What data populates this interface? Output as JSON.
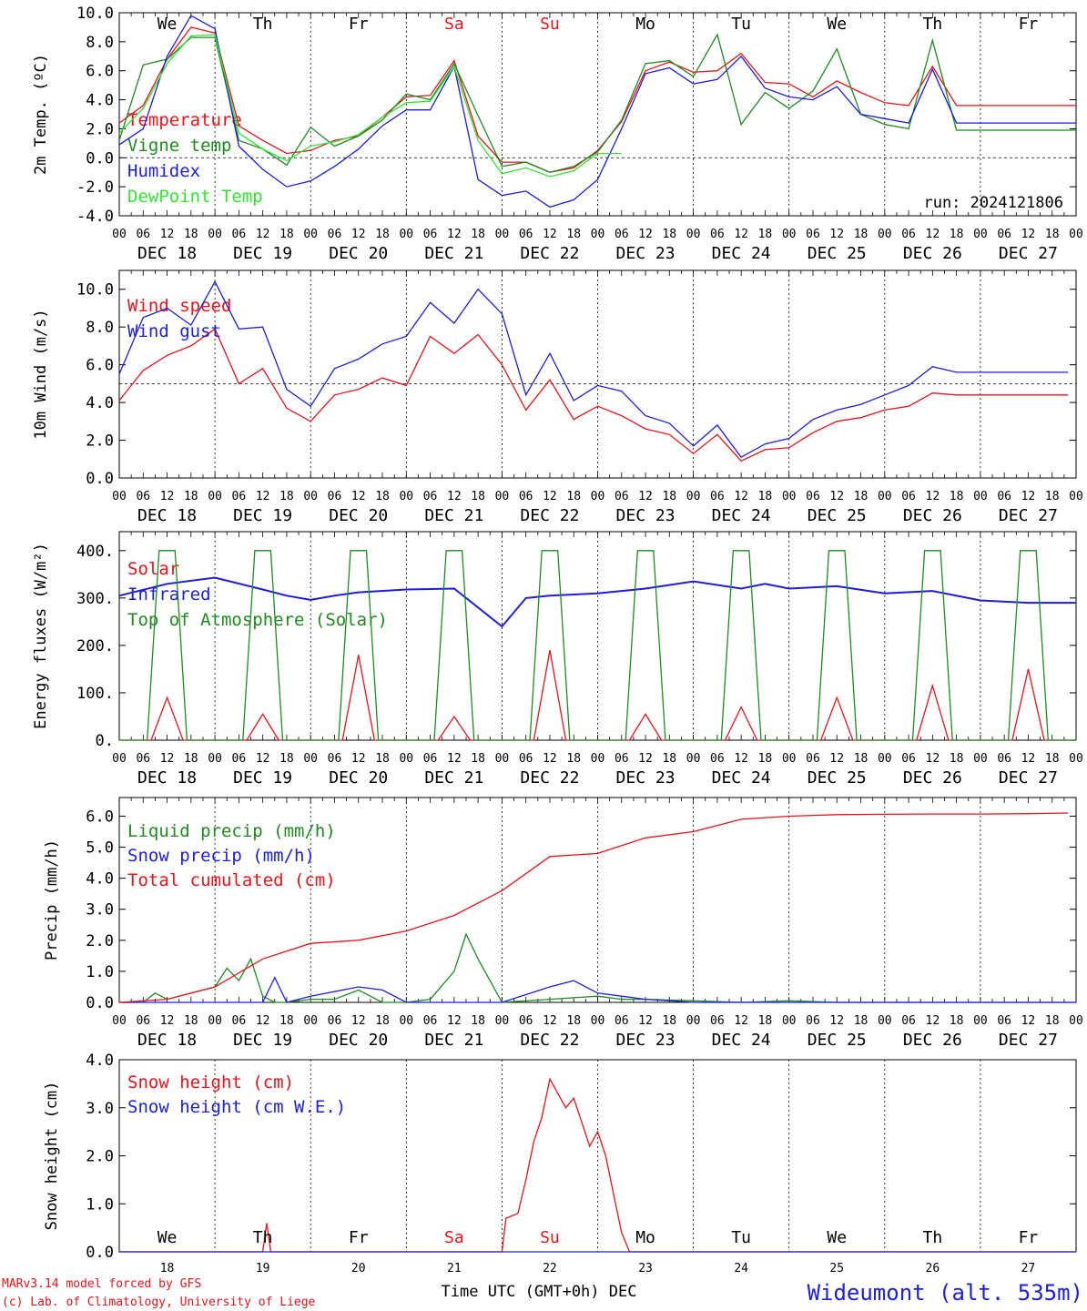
{
  "footer": {
    "model": "MARv3.14 model forced by GFS",
    "copyright": "(c) Lab. of Climatology, University of Liege",
    "station": "Wideumont (alt. 535m)",
    "xlabel": "Time UTC (GMT+0h) DEC"
  },
  "days": {
    "weekday": [
      "We",
      "Th",
      "Fr",
      "Sa",
      "Su",
      "Mo",
      "Tu",
      "We",
      "Th",
      "Fr"
    ],
    "weekday_bottom": [
      "We",
      "Th",
      "Fr",
      "Sa",
      "Su",
      "Mo",
      "Tu",
      "We",
      "Th",
      "Fr"
    ],
    "weekend_color": "#e8141a",
    "weekend_index": [
      3,
      4
    ],
    "dates": [
      "DEC 18",
      "DEC 19",
      "DEC 20",
      "DEC 21",
      "DEC 22",
      "DEC 23",
      "DEC 24",
      "DEC 25",
      "DEC 26",
      "DEC 27"
    ],
    "day_numbers": [
      "18",
      "19",
      "20",
      "21",
      "22",
      "23",
      "24",
      "25",
      "26",
      "27"
    ],
    "hour_ticks": [
      "00",
      "06",
      "12",
      "18"
    ],
    "final_tick": "00"
  },
  "colors": {
    "red": "#e8141a",
    "green": "#1f8a1f",
    "blue": "#1d1de0",
    "lightgreen": "#33e633",
    "black": "#000000"
  },
  "chart_data": [
    {
      "id": "temp",
      "type": "line",
      "ylabel": "2m Temp. (ºC)",
      "ylim": [
        -4,
        10
      ],
      "yticks": [
        "-4.0",
        "-2.0",
        "0.0",
        "2.0",
        "4.0",
        "6.0",
        "8.0",
        "10.0"
      ],
      "refline": 0,
      "annotation": "run: 2024121806",
      "x_unit": "hours since DEC 18 00 UTC",
      "series": [
        {
          "name": "Temperature",
          "color": "red",
          "x": [
            0,
            6,
            12,
            18,
            24,
            30,
            36,
            42,
            48,
            54,
            60,
            66,
            72,
            78,
            84,
            90,
            96,
            102,
            108,
            114,
            120,
            126,
            132,
            138,
            144,
            150,
            156,
            162,
            168,
            174,
            180,
            186,
            192,
            198,
            204,
            210,
            216,
            222,
            228,
            234,
            240
          ],
          "values": [
            2.4,
            3.6,
            6.8,
            9.0,
            8.6,
            2.2,
            1.2,
            0.3,
            0.5,
            1.2,
            1.5,
            2.8,
            4.2,
            4.3,
            6.7,
            1.5,
            -0.3,
            -0.3,
            -1.0,
            -0.7,
            0.5,
            2.5,
            6.0,
            6.6,
            5.9,
            6.0,
            7.2,
            5.2,
            5.1,
            4.2,
            5.3,
            4.5,
            3.8,
            3.6,
            6.3,
            3.6,
            3.6,
            3.6,
            3.6,
            3.6,
            3.6
          ]
        },
        {
          "name": "Vigne temp",
          "color": "green",
          "x": [
            0,
            6,
            12,
            18,
            24,
            30,
            36,
            42,
            48,
            54,
            60,
            66,
            72,
            78,
            84,
            90,
            96,
            102,
            108,
            114,
            120,
            126,
            132,
            138,
            144,
            150,
            156,
            162,
            168,
            174,
            180,
            186,
            192,
            198,
            204,
            210,
            216,
            222,
            228,
            234,
            240
          ],
          "values": [
            1.2,
            6.4,
            6.8,
            8.3,
            8.3,
            1.2,
            0.6,
            -0.5,
            2.1,
            0.8,
            1.5,
            2.6,
            4.4,
            4.0,
            6.5,
            2.9,
            -0.6,
            -0.3,
            -1.0,
            -0.6,
            0.4,
            2.6,
            6.5,
            6.7,
            5.6,
            8.5,
            2.3,
            4.5,
            3.4,
            4.6,
            7.5,
            3.0,
            2.3,
            2.0,
            8.1,
            1.9,
            1.9,
            1.9,
            1.9,
            1.9,
            1.9
          ]
        },
        {
          "name": "Humidex",
          "color": "blue",
          "x": [
            0,
            6,
            12,
            18,
            24,
            30,
            36,
            42,
            48,
            54,
            60,
            66,
            72,
            78,
            84,
            90,
            96,
            102,
            108,
            114,
            120,
            126,
            132,
            138,
            144,
            150,
            156,
            162,
            168,
            174,
            180,
            186,
            192,
            198,
            204,
            210,
            216,
            222,
            228,
            234,
            240
          ],
          "values": [
            0.9,
            2.0,
            7.0,
            9.8,
            8.9,
            0.8,
            -0.8,
            -2.0,
            -1.6,
            -0.6,
            0.6,
            2.2,
            3.3,
            3.3,
            6.3,
            -1.5,
            -2.6,
            -2.3,
            -3.4,
            -2.9,
            -1.5,
            2.0,
            5.8,
            6.2,
            5.1,
            5.4,
            7.0,
            4.8,
            4.2,
            4.0,
            4.9,
            3.0,
            2.7,
            2.4,
            6.1,
            2.4,
            2.4,
            2.4,
            2.4,
            2.4,
            2.4
          ]
        },
        {
          "name": "DewPoint Temp",
          "color": "lightgreen",
          "x": [
            0,
            6,
            12,
            18,
            24,
            30,
            36,
            42,
            48,
            54,
            60,
            66,
            72,
            78,
            84,
            90,
            96,
            102,
            108,
            114,
            120,
            126
          ],
          "values": [
            1.7,
            3.4,
            6.5,
            8.4,
            8.5,
            1.7,
            0.6,
            -0.2,
            0.8,
            1.1,
            1.6,
            2.8,
            3.8,
            3.9,
            6.3,
            1.2,
            -1.1,
            -0.7,
            -1.3,
            -0.9,
            0.3,
            0.3
          ]
        }
      ]
    },
    {
      "id": "wind",
      "type": "line",
      "ylabel": "10m Wind (m/s)",
      "ylim": [
        0,
        11
      ],
      "yticks": [
        "0.0",
        "2.0",
        "4.0",
        "6.0",
        "8.0",
        "10.0"
      ],
      "refline": 5,
      "x_unit": "hours since DEC 18 00 UTC",
      "series": [
        {
          "name": "Wind speed",
          "color": "red",
          "x": [
            0,
            6,
            12,
            18,
            24,
            30,
            36,
            42,
            48,
            54,
            60,
            66,
            72,
            78,
            84,
            90,
            96,
            102,
            108,
            114,
            120,
            126,
            132,
            138,
            144,
            150,
            156,
            162,
            168,
            174,
            180,
            186,
            192,
            198,
            204,
            210,
            216,
            222,
            228,
            234,
            238
          ],
          "values": [
            4.1,
            5.7,
            6.5,
            7.0,
            7.9,
            5.0,
            5.8,
            3.7,
            3.0,
            4.4,
            4.7,
            5.3,
            4.9,
            7.5,
            6.6,
            7.6,
            6.0,
            3.6,
            5.2,
            3.1,
            3.8,
            3.3,
            2.6,
            2.3,
            1.3,
            2.3,
            0.9,
            1.5,
            1.6,
            2.4,
            3.0,
            3.2,
            3.6,
            3.8,
            4.5,
            4.4,
            4.4,
            4.4,
            4.4,
            4.4,
            4.4
          ]
        },
        {
          "name": "Wind gust",
          "color": "blue",
          "x": [
            0,
            6,
            12,
            18,
            24,
            30,
            36,
            42,
            48,
            54,
            60,
            66,
            72,
            78,
            84,
            90,
            96,
            102,
            108,
            114,
            120,
            126,
            132,
            138,
            144,
            150,
            156,
            162,
            168,
            174,
            180,
            186,
            192,
            198,
            204,
            210,
            216,
            222,
            228,
            234,
            238
          ],
          "values": [
            5.5,
            8.5,
            9.0,
            8.1,
            10.4,
            7.9,
            8.0,
            4.7,
            3.8,
            5.8,
            6.3,
            7.1,
            7.5,
            9.3,
            8.2,
            10.0,
            8.7,
            4.4,
            6.6,
            4.1,
            4.9,
            4.6,
            3.3,
            2.9,
            1.7,
            2.8,
            1.1,
            1.8,
            2.1,
            3.1,
            3.6,
            3.9,
            4.4,
            4.9,
            5.9,
            5.6,
            5.6,
            5.6,
            5.6,
            5.6,
            5.6
          ]
        }
      ]
    },
    {
      "id": "energy",
      "type": "line",
      "ylabel": "Energy fluxes (W/m²)",
      "ylim": [
        0,
        440
      ],
      "yticks": [
        "0.",
        "100.",
        "200.",
        "300.",
        "400."
      ],
      "x_unit": "hours since DEC 18 00 UTC",
      "series": [
        {
          "name": "Solar",
          "color": "red",
          "peaks": [
            90,
            55,
            180,
            50,
            190,
            55,
            70,
            90,
            115,
            150
          ],
          "peak_hour": 12
        },
        {
          "name": "Infrared",
          "color": "blue",
          "x": [
            0,
            12,
            24,
            36,
            42,
            48,
            54,
            60,
            72,
            84,
            96,
            102,
            108,
            120,
            132,
            144,
            156,
            162,
            168,
            180,
            192,
            204,
            216,
            228,
            240
          ],
          "values": [
            305,
            330,
            343,
            318,
            305,
            296,
            305,
            312,
            318,
            320,
            240,
            300,
            305,
            310,
            320,
            335,
            320,
            330,
            320,
            325,
            310,
            315,
            295,
            290,
            290
          ]
        },
        {
          "name": "Top of Atmosphere (Solar)",
          "color": "green",
          "peak": 400,
          "rise_hour": 7,
          "set_hour": 17,
          "plateau_start": 10,
          "plateau_end": 14
        }
      ]
    },
    {
      "id": "precip",
      "type": "line",
      "ylabel": "Precip (mm/h)",
      "ylim": [
        0,
        6.6
      ],
      "yticks": [
        "0.0",
        "1.0",
        "2.0",
        "3.0",
        "4.0",
        "5.0",
        "6.0"
      ],
      "x_unit": "hours since DEC 18 00 UTC",
      "series": [
        {
          "name": "Liquid precip (mm/h)",
          "color": "green",
          "x": [
            0,
            6,
            9,
            12,
            18,
            24,
            27,
            30,
            33,
            36,
            39,
            42,
            48,
            54,
            60,
            66,
            72,
            78,
            84,
            87,
            90,
            96,
            108,
            120,
            126,
            132,
            144,
            156,
            168,
            180,
            192,
            204,
            216,
            228,
            240
          ],
          "values": [
            0,
            0,
            0.3,
            0.1,
            0.3,
            0.5,
            1.1,
            0.7,
            1.4,
            0.2,
            0,
            0,
            0.1,
            0.1,
            0.4,
            0,
            0,
            0.1,
            1.0,
            2.2,
            1.4,
            0,
            0.1,
            0.2,
            0.1,
            0.1,
            0.05,
            0,
            0.05,
            0,
            0,
            0,
            0,
            0,
            0
          ]
        },
        {
          "name": "Snow precip (mm/h)",
          "color": "blue",
          "x": [
            0,
            24,
            36,
            39,
            42,
            48,
            60,
            66,
            72,
            84,
            96,
            108,
            114,
            120,
            126,
            132,
            144,
            156,
            168,
            180,
            192,
            204,
            216,
            228,
            240
          ],
          "values": [
            0,
            0,
            0,
            0.8,
            0,
            0.2,
            0.5,
            0.4,
            0,
            0,
            0,
            0.5,
            0.7,
            0.3,
            0.2,
            0.1,
            0,
            0,
            0,
            0,
            0,
            0,
            0,
            0,
            0
          ]
        },
        {
          "name": "Total cumulated (cm)",
          "color": "red",
          "x": [
            0,
            12,
            24,
            36,
            48,
            60,
            72,
            84,
            96,
            108,
            120,
            132,
            144,
            156,
            168,
            180,
            192,
            204,
            216,
            228,
            238
          ],
          "values": [
            0,
            0.1,
            0.5,
            1.4,
            1.9,
            2.0,
            2.3,
            2.8,
            3.6,
            4.7,
            4.8,
            5.3,
            5.5,
            5.9,
            6.0,
            6.05,
            6.06,
            6.07,
            6.07,
            6.08,
            6.1
          ]
        }
      ]
    },
    {
      "id": "snow",
      "type": "line",
      "ylabel": "Snow height (cm)",
      "ylim": [
        0,
        4
      ],
      "yticks": [
        "0.0",
        "1.0",
        "2.0",
        "3.0",
        "4.0"
      ],
      "x_unit": "hours since DEC 18 00 UTC",
      "series": [
        {
          "name": "Snow height (cm)",
          "color": "red",
          "x": [
            0,
            36,
            37,
            38,
            39,
            40,
            96,
            97,
            100,
            102,
            104,
            106,
            108,
            110,
            112,
            114,
            116,
            118,
            120,
            122,
            124,
            126,
            128,
            130,
            132,
            134,
            136,
            137,
            138,
            140,
            142,
            143,
            144,
            240
          ],
          "values": [
            0,
            0,
            0.6,
            0,
            0,
            0,
            0,
            0.7,
            0.8,
            1.5,
            2.3,
            2.8,
            3.6,
            3.3,
            3.0,
            3.2,
            2.7,
            2.2,
            2.5,
            2.0,
            1.2,
            0.4,
            0,
            0,
            0,
            0,
            0,
            0,
            0,
            0,
            0,
            0,
            0,
            0
          ]
        },
        {
          "name": "Snow height (cm W.E.)",
          "color": "blue",
          "x": [
            0,
            240
          ],
          "values": [
            0,
            0
          ]
        }
      ]
    }
  ]
}
